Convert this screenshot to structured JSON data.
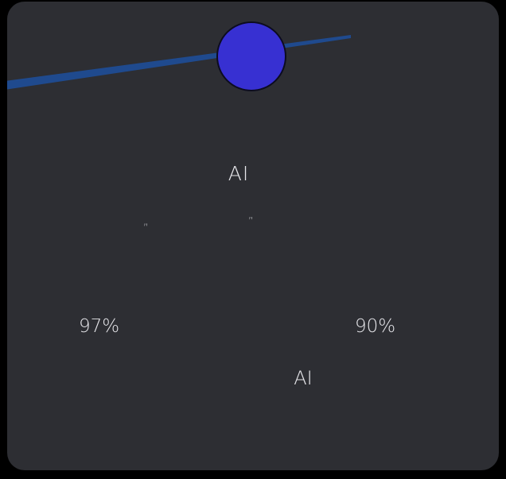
{
  "colors": {
    "card_background": "#2d2e33",
    "avatar_fill": "#3730d2",
    "accent_streak": "#1f4a8e"
  },
  "hero": {
    "title": "AI",
    "quote_open": "„",
    "quote_close": "”"
  },
  "stats": {
    "left_value": "97%",
    "right_value": "90%",
    "label": "AI"
  }
}
